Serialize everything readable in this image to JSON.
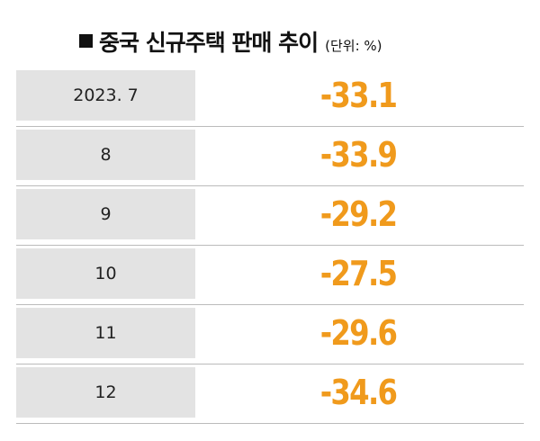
{
  "header": {
    "title": "중국 신규주택 판매 추이",
    "unit": "(단위: %)"
  },
  "table": {
    "rows": [
      [
        "2023. 7",
        -33.1
      ],
      [
        "8",
        -33.9
      ],
      [
        "9",
        -29.2
      ],
      [
        "10",
        -27.5
      ],
      [
        "11",
        -29.6
      ],
      [
        "12",
        -34.6
      ]
    ]
  }
}
